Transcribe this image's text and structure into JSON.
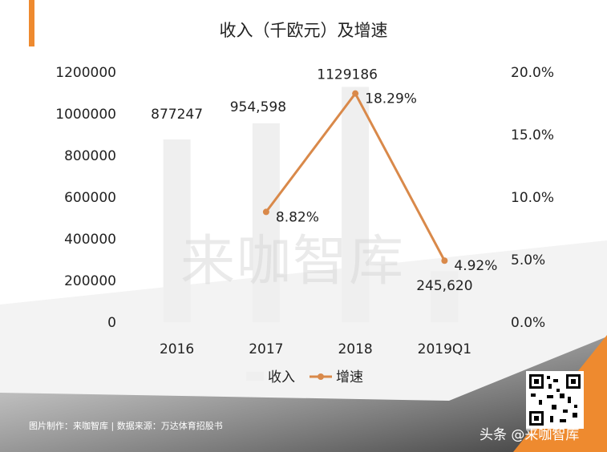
{
  "title": "收入（千欧元）及增速",
  "watermark": "来咖智库",
  "footer_note": "图片制作：来咖智库 | 数据来源：万达体育招股书",
  "brand": "头条 @来咖智库",
  "colors": {
    "bar": "#efefef",
    "line": "#d9894a",
    "accent": "#ee8a2f",
    "shadow": "#444444"
  },
  "chart_data": {
    "type": "bar",
    "title": "收入（千欧元）及增速",
    "categories": [
      "2016",
      "2017",
      "2018",
      "2019Q1"
    ],
    "series": [
      {
        "name": "收入",
        "type": "bar",
        "axis": "left",
        "values": [
          877247,
          954598,
          1129186,
          245620
        ],
        "labels": [
          "877247",
          "954,598",
          "1129186",
          "245,620"
        ]
      },
      {
        "name": "增速",
        "type": "line",
        "axis": "right",
        "values": [
          null,
          8.82,
          18.29,
          4.92
        ],
        "labels": [
          "",
          "8.82%",
          "18.29%",
          "4.92%"
        ]
      }
    ],
    "y_left": {
      "min": 0,
      "max": 1200000,
      "ticks": [
        "0",
        "200000",
        "400000",
        "600000",
        "800000",
        "1000000",
        "1200000"
      ]
    },
    "y_right": {
      "min": 0,
      "max": 20,
      "ticks": [
        "0.0%",
        "5.0%",
        "10.0%",
        "15.0%",
        "20.0%"
      ]
    },
    "legend": {
      "placement": "bottom",
      "entries": [
        "收入",
        "增速"
      ]
    },
    "grid": false
  }
}
